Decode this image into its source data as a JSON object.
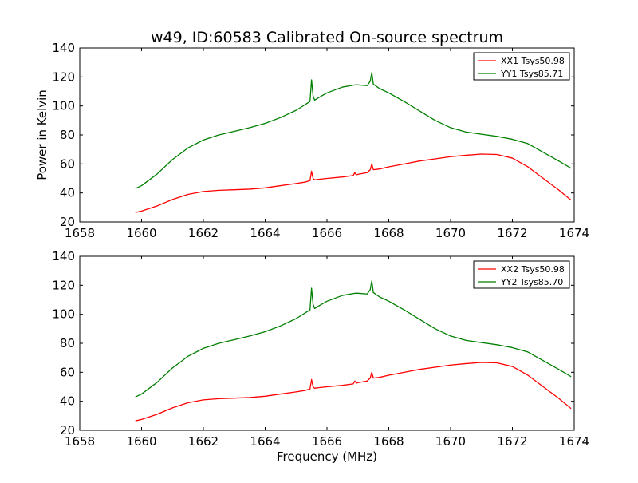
{
  "figure_title": "w49, ID:60583 Calibrated On-source spectrum",
  "ylabel": "Power in Kelvin",
  "xlabel": "Frequency (MHz)",
  "colors": {
    "xx": "#ff0000",
    "yy": "#007f00"
  },
  "chart_data": [
    {
      "type": "line",
      "title": "w49, ID:60583 Calibrated On-source spectrum",
      "xlabel": "",
      "ylabel": "Power in Kelvin",
      "xlim": [
        1658,
        1674
      ],
      "ylim": [
        20,
        140
      ],
      "xticks": [
        1658,
        1660,
        1662,
        1664,
        1666,
        1668,
        1670,
        1672,
        1674
      ],
      "yticks": [
        20,
        40,
        60,
        80,
        100,
        120,
        140
      ],
      "grid": false,
      "legend_position": "top-right",
      "series": [
        {
          "name": "XX1 Tsys50.98",
          "color": "#ff0000",
          "x": [
            1659.8,
            1660.0,
            1660.5,
            1661.0,
            1661.5,
            1662.0,
            1662.5,
            1663.0,
            1663.5,
            1664.0,
            1664.5,
            1665.0,
            1665.3,
            1665.45,
            1665.5,
            1665.55,
            1665.6,
            1665.7,
            1666.0,
            1666.5,
            1666.85,
            1666.9,
            1666.95,
            1667.0,
            1667.3,
            1667.4,
            1667.45,
            1667.5,
            1667.7,
            1668.0,
            1668.5,
            1669.0,
            1669.5,
            1670.0,
            1670.5,
            1671.0,
            1671.5,
            1672.0,
            1672.5,
            1673.0,
            1673.5,
            1673.9
          ],
          "y": [
            26.5,
            27.5,
            31,
            35.5,
            39,
            41,
            41.8,
            42.2,
            42.6,
            43.5,
            45,
            46.5,
            47.5,
            48.5,
            55,
            50,
            49,
            49.3,
            50,
            51,
            52,
            54,
            52.5,
            52.8,
            54,
            56,
            60,
            56,
            56.5,
            58,
            60,
            62,
            63.5,
            65,
            66,
            66.8,
            66.5,
            64,
            58,
            50,
            42,
            35
          ]
        },
        {
          "name": "YY1 Tsys85.71",
          "color": "#007f00",
          "x": [
            1659.8,
            1660.0,
            1660.5,
            1661.0,
            1661.5,
            1662.0,
            1662.5,
            1663.0,
            1663.5,
            1664.0,
            1664.5,
            1665.0,
            1665.3,
            1665.45,
            1665.5,
            1665.55,
            1665.6,
            1665.75,
            1666.0,
            1666.5,
            1666.9,
            1667.0,
            1667.3,
            1667.4,
            1667.45,
            1667.5,
            1667.7,
            1668.0,
            1668.5,
            1669.0,
            1669.5,
            1670.0,
            1670.5,
            1671.0,
            1671.5,
            1672.0,
            1672.5,
            1673.0,
            1673.5,
            1673.9
          ],
          "y": [
            43,
            45,
            53,
            63,
            71,
            76.5,
            80,
            82.5,
            85,
            88,
            92,
            97,
            101,
            103,
            118,
            107,
            104,
            106,
            109,
            113,
            114.5,
            114.5,
            114,
            117,
            123,
            115,
            112,
            109,
            103,
            96.5,
            90,
            85,
            82,
            80.5,
            79,
            77,
            74,
            68,
            62,
            57
          ]
        }
      ]
    },
    {
      "type": "line",
      "title": "",
      "xlabel": "Frequency (MHz)",
      "ylabel": "",
      "xlim": [
        1658,
        1674
      ],
      "ylim": [
        20,
        140
      ],
      "xticks": [
        1658,
        1660,
        1662,
        1664,
        1666,
        1668,
        1670,
        1672,
        1674
      ],
      "yticks": [
        20,
        40,
        60,
        80,
        100,
        120,
        140
      ],
      "grid": false,
      "legend_position": "top-right",
      "series": [
        {
          "name": "XX2 Tsys50.98",
          "color": "#ff0000",
          "x": [
            1659.8,
            1660.0,
            1660.5,
            1661.0,
            1661.5,
            1662.0,
            1662.5,
            1663.0,
            1663.5,
            1664.0,
            1664.5,
            1665.0,
            1665.3,
            1665.45,
            1665.5,
            1665.55,
            1665.6,
            1665.7,
            1666.0,
            1666.5,
            1666.85,
            1666.9,
            1666.95,
            1667.0,
            1667.3,
            1667.4,
            1667.45,
            1667.5,
            1667.7,
            1668.0,
            1668.5,
            1669.0,
            1669.5,
            1670.0,
            1670.5,
            1671.0,
            1671.5,
            1672.0,
            1672.5,
            1673.0,
            1673.5,
            1673.9
          ],
          "y": [
            26.5,
            27.5,
            31,
            35.5,
            39,
            41,
            41.8,
            42.2,
            42.6,
            43.5,
            45,
            46.5,
            47.5,
            48.5,
            55,
            50,
            49,
            49.3,
            50,
            51,
            52,
            54,
            52.5,
            52.8,
            54,
            56,
            60,
            56,
            56.5,
            58,
            60,
            62,
            63.5,
            65,
            66,
            66.8,
            66.5,
            64,
            58,
            50,
            42,
            35
          ]
        },
        {
          "name": "YY2 Tsys85.70",
          "color": "#007f00",
          "x": [
            1659.8,
            1660.0,
            1660.5,
            1661.0,
            1661.5,
            1662.0,
            1662.5,
            1663.0,
            1663.5,
            1664.0,
            1664.5,
            1665.0,
            1665.3,
            1665.45,
            1665.5,
            1665.55,
            1665.6,
            1665.75,
            1666.0,
            1666.5,
            1666.9,
            1667.0,
            1667.3,
            1667.4,
            1667.45,
            1667.5,
            1667.7,
            1668.0,
            1668.5,
            1669.0,
            1669.5,
            1670.0,
            1670.5,
            1671.0,
            1671.5,
            1672.0,
            1672.5,
            1673.0,
            1673.5,
            1673.9
          ],
          "y": [
            43,
            45,
            53,
            63,
            71,
            76.5,
            80,
            82.5,
            85,
            88,
            92,
            97,
            101,
            103,
            118,
            107,
            104,
            106,
            109,
            113,
            114.5,
            114.5,
            114,
            117,
            123,
            115,
            112,
            109,
            103,
            96.5,
            90,
            85,
            82,
            80.5,
            79,
            77,
            74,
            68,
            62,
            57
          ]
        }
      ]
    }
  ]
}
